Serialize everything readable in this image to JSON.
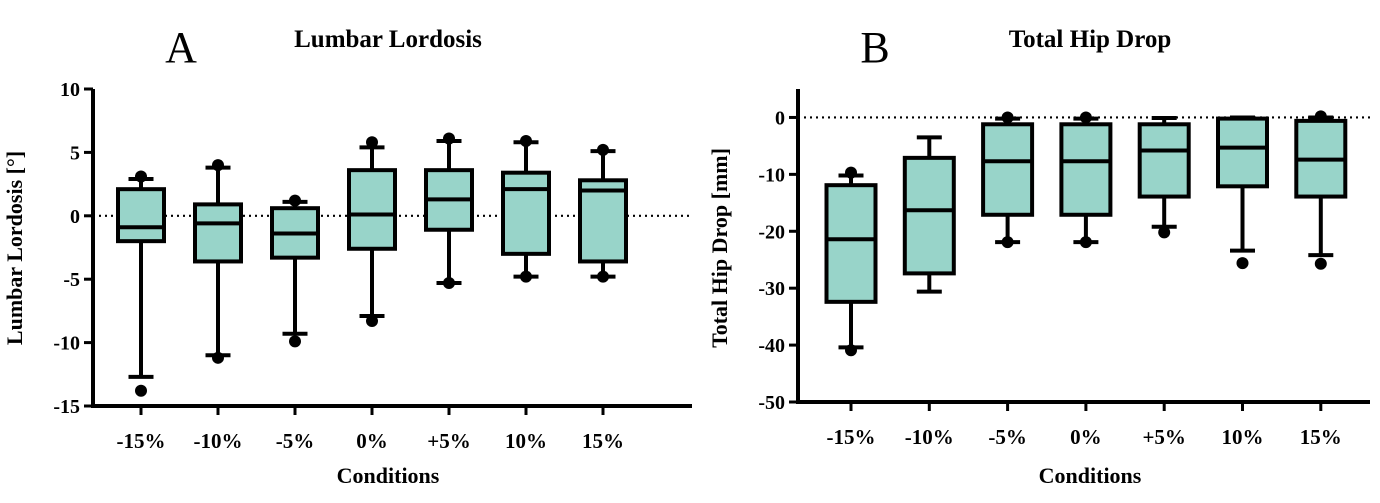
{
  "chart_data": [
    {
      "panel": "A",
      "type": "boxplot",
      "title": "Lumbar Lordosis",
      "xlabel": "Conditions",
      "ylabel": "Lumbar Lordosis [°]",
      "ylim": [
        -15,
        10
      ],
      "yticks": [
        10,
        5,
        0,
        -5,
        -10,
        -15
      ],
      "reference_line": 0,
      "box_color": "#98d4c9",
      "categories": [
        "-15%",
        "-10%",
        "-5%",
        "0%",
        "+5%",
        "10%",
        "15%"
      ],
      "boxes": [
        {
          "whisker_low": -12.7,
          "q1": -2.0,
          "median": -0.9,
          "q3": 2.1,
          "whisker_high": 2.9,
          "outliers": [
            -13.8,
            3.1
          ]
        },
        {
          "whisker_low": -11.0,
          "q1": -3.6,
          "median": -0.6,
          "q3": 0.9,
          "whisker_high": 3.8,
          "outliers": [
            -11.2,
            4.0
          ]
        },
        {
          "whisker_low": -9.3,
          "q1": -3.3,
          "median": -1.4,
          "q3": 0.6,
          "whisker_high": 1.1,
          "outliers": [
            -9.9,
            1.2
          ]
        },
        {
          "whisker_low": -7.9,
          "q1": -2.6,
          "median": 0.1,
          "q3": 3.6,
          "whisker_high": 5.4,
          "outliers": [
            -8.3,
            5.8
          ]
        },
        {
          "whisker_low": -5.3,
          "q1": -1.1,
          "median": 1.3,
          "q3": 3.6,
          "whisker_high": 5.9,
          "outliers": [
            -5.3,
            6.1
          ]
        },
        {
          "whisker_low": -4.8,
          "q1": -3.0,
          "median": 2.1,
          "q3": 3.4,
          "whisker_high": 5.8,
          "outliers": [
            -4.8,
            5.9
          ]
        },
        {
          "whisker_low": -4.8,
          "q1": -3.6,
          "median": 2.0,
          "q3": 2.8,
          "whisker_high": 5.1,
          "outliers": [
            -4.8,
            5.2
          ]
        }
      ]
    },
    {
      "panel": "B",
      "type": "boxplot",
      "title": "Total Hip Drop",
      "xlabel": "Conditions",
      "ylabel": "Total Hip Drop [mm]",
      "ylim": [
        -50,
        5
      ],
      "yticks": [
        0,
        -10,
        -20,
        -30,
        -40,
        -50
      ],
      "reference_line": 0,
      "box_color": "#98d4c9",
      "categories": [
        "-15%",
        "-10%",
        "-5%",
        "0%",
        "+5%",
        "10%",
        "15%"
      ],
      "boxes": [
        {
          "whisker_low": -40.4,
          "q1": -32.4,
          "median": -21.4,
          "q3": -11.9,
          "whisker_high": -10.2,
          "outliers": [
            -40.9,
            -9.7
          ]
        },
        {
          "whisker_low": -30.6,
          "q1": -27.4,
          "median": -16.3,
          "q3": -7.1,
          "whisker_high": -3.5,
          "outliers": []
        },
        {
          "whisker_low": -21.9,
          "q1": -17.1,
          "median": -7.7,
          "q3": -1.2,
          "whisker_high": -0.2,
          "outliers": [
            -21.9,
            0.0
          ]
        },
        {
          "whisker_low": -21.9,
          "q1": -17.1,
          "median": -7.7,
          "q3": -1.2,
          "whisker_high": -0.2,
          "outliers": [
            -21.9,
            0.0
          ]
        },
        {
          "whisker_low": -19.2,
          "q1": -13.9,
          "median": -5.8,
          "q3": -1.2,
          "whisker_high": -0.1,
          "outliers": [
            -20.2
          ]
        },
        {
          "whisker_low": -23.4,
          "q1": -12.1,
          "median": -5.3,
          "q3": -0.2,
          "whisker_high": 0.0,
          "outliers": [
            -25.6
          ]
        },
        {
          "whisker_low": -24.2,
          "q1": -13.9,
          "median": -7.4,
          "q3": -0.6,
          "whisker_high": 0.0,
          "outliers": [
            -25.7,
            0.2
          ]
        }
      ]
    }
  ]
}
